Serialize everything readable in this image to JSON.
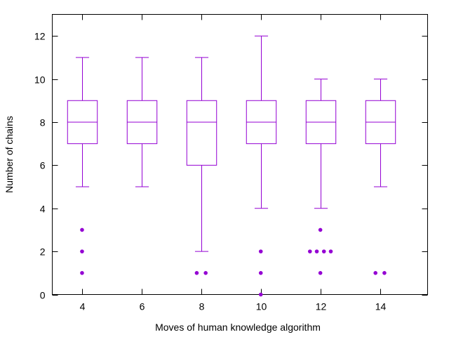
{
  "chart_data": {
    "type": "boxplot",
    "xlabel": "Moves of human knowledge algorithm",
    "ylabel": "Number of chains",
    "xlim": [
      3,
      15.6
    ],
    "ylim": [
      0,
      13
    ],
    "xticks": [
      4,
      6,
      8,
      10,
      12,
      14
    ],
    "yticks": [
      0,
      2,
      4,
      6,
      8,
      10,
      12
    ],
    "grid": false,
    "color": "#9400d3",
    "boxes": [
      {
        "x": 4,
        "whisker_low": 5,
        "q1": 7,
        "median": 8,
        "q3": 9,
        "whisker_high": 11,
        "outliers": [
          [
            4,
            3
          ],
          [
            4,
            2
          ],
          [
            4,
            1
          ]
        ]
      },
      {
        "x": 6,
        "whisker_low": 5,
        "q1": 7,
        "median": 8,
        "q3": 9,
        "whisker_high": 11,
        "outliers": []
      },
      {
        "x": 8,
        "whisker_low": 2,
        "q1": 6,
        "median": 8,
        "q3": 9,
        "whisker_high": 11,
        "outliers": [
          [
            7.85,
            1
          ],
          [
            8.15,
            1
          ]
        ]
      },
      {
        "x": 10,
        "whisker_low": 4,
        "q1": 7,
        "median": 8,
        "q3": 9,
        "whisker_high": 12,
        "outliers": [
          [
            10,
            2
          ],
          [
            10,
            1
          ],
          [
            10,
            0
          ]
        ]
      },
      {
        "x": 12,
        "whisker_low": 4,
        "q1": 7,
        "median": 8,
        "q3": 9,
        "whisker_high": 10,
        "outliers": [
          [
            12,
            3
          ],
          [
            11.65,
            2
          ],
          [
            11.88,
            2
          ],
          [
            12.12,
            2
          ],
          [
            12.35,
            2
          ],
          [
            12,
            1
          ]
        ]
      },
      {
        "x": 14,
        "whisker_low": 5,
        "q1": 7,
        "median": 8,
        "q3": 9,
        "whisker_high": 10,
        "outliers": [
          [
            13.85,
            1
          ],
          [
            14.15,
            1
          ]
        ]
      }
    ]
  }
}
